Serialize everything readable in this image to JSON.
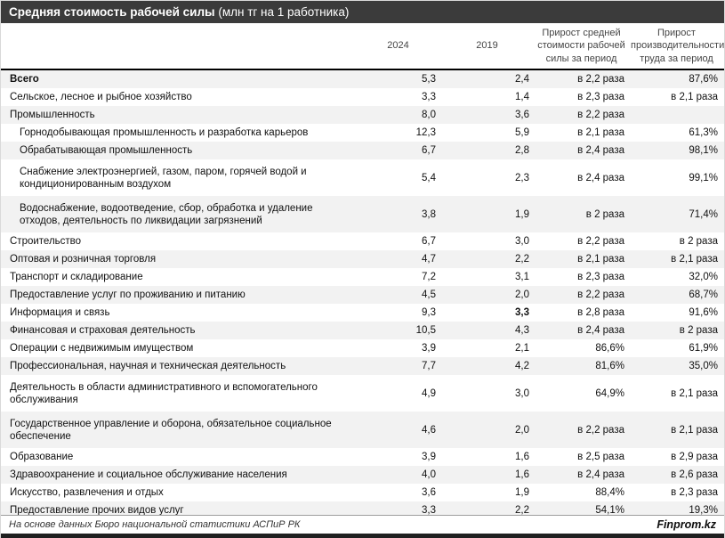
{
  "title": {
    "main": "Средняя стоимость рабочей силы",
    "suffix": " (млн тг на 1 работника)"
  },
  "chart_data": {
    "type": "table",
    "title": "Средняя стоимость рабочей силы (млн тг на 1 работника)",
    "columns": [
      "2024",
      "2019",
      "Прирост средней стоимости рабочей силы за период",
      "Прирост производительности труда за период"
    ],
    "rows": [
      {
        "label": "Всего",
        "bold": true,
        "indent": false,
        "tall": false,
        "values": [
          "5,3",
          "2,4",
          "в 2,2 раза",
          "87,6%"
        ]
      },
      {
        "label": "Сельское, лесное и рыбное хозяйство",
        "bold": false,
        "indent": false,
        "tall": false,
        "values": [
          "3,3",
          "1,4",
          "в 2,3 раза",
          "в 2,1 раза"
        ]
      },
      {
        "label": "Промышленность",
        "bold": false,
        "indent": false,
        "tall": false,
        "values": [
          "8,0",
          "3,6",
          "в 2,2 раза",
          ""
        ]
      },
      {
        "label": "Горнодобывающая промышленность и разработка карьеров",
        "bold": false,
        "indent": true,
        "tall": false,
        "values": [
          "12,3",
          "5,9",
          "в 2,1 раза",
          "61,3%"
        ]
      },
      {
        "label": "Обрабатывающая промышленность",
        "bold": false,
        "indent": true,
        "tall": false,
        "values": [
          "6,7",
          "2,8",
          "в 2,4 раза",
          "98,1%"
        ]
      },
      {
        "label": "Снабжение электроэнергией, газом, паром, горячей водой и кондиционированным воздухом",
        "bold": false,
        "indent": true,
        "tall": true,
        "values": [
          "5,4",
          "2,3",
          "в 2,4 раза",
          "99,1%"
        ]
      },
      {
        "label": "Водоснабжение, водоотведение, сбор, обработка и удаление отходов, деятельность по ликвидации загрязнений",
        "bold": false,
        "indent": true,
        "tall": true,
        "values": [
          "3,8",
          "1,9",
          "в 2 раза",
          "71,4%"
        ]
      },
      {
        "label": "Строительство",
        "bold": false,
        "indent": false,
        "tall": false,
        "values": [
          "6,7",
          "3,0",
          "в 2,2 раза",
          "в 2 раза"
        ]
      },
      {
        "label": "Оптовая и розничная торговля",
        "bold": false,
        "indent": false,
        "tall": false,
        "values": [
          "4,7",
          "2,2",
          "в 2,1 раза",
          "в 2,1 раза"
        ]
      },
      {
        "label": "Транспорт и складирование",
        "bold": false,
        "indent": false,
        "tall": false,
        "values": [
          "7,2",
          "3,1",
          "в 2,3 раза",
          "32,0%"
        ]
      },
      {
        "label": "Предоставление услуг по проживанию и питанию",
        "bold": false,
        "indent": false,
        "tall": false,
        "values": [
          "4,5",
          "2,0",
          "в 2,2 раза",
          "68,7%"
        ]
      },
      {
        "label": "Информация и связь",
        "bold": false,
        "indent": false,
        "tall": false,
        "bold_values": [
          1
        ],
        "values": [
          "9,3",
          "3,3",
          "в 2,8 раза",
          "91,6%"
        ]
      },
      {
        "label": "Финансовая и страховая деятельность",
        "bold": false,
        "indent": false,
        "tall": false,
        "values": [
          "10,5",
          "4,3",
          "в 2,4 раза",
          "в 2 раза"
        ]
      },
      {
        "label": "Операции с недвижимым имуществом",
        "bold": false,
        "indent": false,
        "tall": false,
        "values": [
          "3,9",
          "2,1",
          "86,6%",
          "61,9%"
        ]
      },
      {
        "label": "Профессиональная, научная и техническая деятельность",
        "bold": false,
        "indent": false,
        "tall": false,
        "values": [
          "7,7",
          "4,2",
          "81,6%",
          "35,0%"
        ]
      },
      {
        "label": "Деятельность в области административного и вспомогательного обслуживания",
        "bold": false,
        "indent": false,
        "tall": true,
        "values": [
          "4,9",
          "3,0",
          "64,9%",
          "в 2,1 раза"
        ]
      },
      {
        "label": "Государственное управление и оборона, обязательное социальное обеспечение",
        "bold": false,
        "indent": false,
        "tall": true,
        "values": [
          "4,6",
          "2,0",
          "в 2,2 раза",
          "в 2,1 раза"
        ]
      },
      {
        "label": "Образование",
        "bold": false,
        "indent": false,
        "tall": false,
        "values": [
          "3,9",
          "1,6",
          "в 2,5 раза",
          "в 2,9 раза"
        ]
      },
      {
        "label": "Здравоохранение и социальное обслуживание населения",
        "bold": false,
        "indent": false,
        "tall": false,
        "values": [
          "4,0",
          "1,6",
          "в 2,4 раза",
          "в 2,6 раза"
        ]
      },
      {
        "label": "Искусство, развлечения и отдых",
        "bold": false,
        "indent": false,
        "tall": false,
        "values": [
          "3,6",
          "1,9",
          "88,4%",
          "в 2,3 раза"
        ]
      },
      {
        "label": "Предоставление прочих видов услуг",
        "bold": false,
        "indent": false,
        "tall": false,
        "values": [
          "3,3",
          "2,2",
          "54,1%",
          "19,3%"
        ]
      }
    ]
  },
  "footer": {
    "source": "На основе данных Бюро национальной статистики АСПиР РК",
    "brand": "Finprom.kz"
  },
  "colors": {
    "title_bar": "#3b3b3b",
    "stripe": "#f2f2f2",
    "header_text": "#454545",
    "header_underline": "#000000",
    "bottom_bar": "#1f1f1f"
  }
}
